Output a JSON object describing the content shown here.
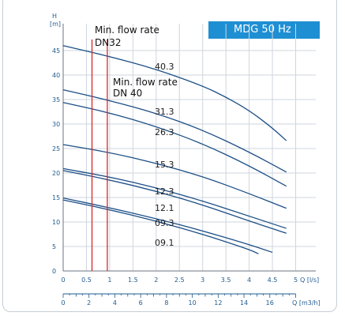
{
  "chart_data": {
    "type": "line",
    "badge": "MDG 50 Hz",
    "y_axis": {
      "unit_top": "H",
      "unit_bottom": "[m]",
      "ylim": [
        0,
        47
      ],
      "ticks": [
        0,
        5,
        10,
        15,
        20,
        25,
        30,
        35,
        40,
        45
      ]
    },
    "x_axis": {
      "label": "Q [l/s]",
      "xlim": [
        0,
        5
      ],
      "ticks": [
        0,
        0.5,
        1,
        1.5,
        2,
        2.5,
        3,
        3.5,
        4,
        4.5,
        5
      ],
      "tick_labels": [
        "0",
        "0.5",
        "1",
        "1.5",
        "2",
        "2.5",
        "3",
        "3.5",
        "4",
        "4.5",
        "5"
      ]
    },
    "x2_axis": {
      "label": "Q [m3/h]",
      "xlim": [
        0,
        18
      ],
      "ticks": [
        0,
        2,
        4,
        6,
        8,
        10,
        12,
        14,
        16
      ],
      "tick_labels": [
        "0",
        "2",
        "4",
        "6",
        "8",
        "10",
        "12",
        "14",
        "16"
      ]
    },
    "grid": true,
    "markers": [
      {
        "lines": [
          "Min. flow rate",
          "DN32"
        ],
        "x": 0.62,
        "color": "#d9262c"
      },
      {
        "lines": [
          "Min. flow rate",
          "DN 40"
        ],
        "x": 0.95,
        "color": "#d9262c"
      }
    ],
    "series": [
      {
        "name": "40.3",
        "x": [
          0,
          1,
          2,
          3,
          3.5,
          4,
          4.5,
          4.8
        ],
        "y": [
          46,
          43.8,
          41.2,
          37.8,
          35.5,
          32.8,
          29.2,
          26.6
        ]
      },
      {
        "name": "31.3",
        "x": [
          0,
          1,
          2,
          3,
          4,
          4.8
        ],
        "y": [
          37,
          34.8,
          32.2,
          28.8,
          24.3,
          20.2
        ]
      },
      {
        "name": "26.3",
        "x": [
          0,
          1,
          2,
          3,
          4,
          4.8
        ],
        "y": [
          34.4,
          32.3,
          29.5,
          26,
          21.5,
          17.3
        ]
      },
      {
        "name": "15.3",
        "x": [
          0,
          1,
          2,
          3,
          4,
          4.8
        ],
        "y": [
          25.8,
          24.2,
          22,
          19.3,
          15.8,
          12.8
        ]
      },
      {
        "name": "12.3",
        "x": [
          0,
          1,
          2,
          3,
          4,
          4.8
        ],
        "y": [
          20.9,
          19.2,
          17,
          14.3,
          11.2,
          8.7
        ]
      },
      {
        "name": "12.1",
        "x": [
          0,
          1,
          2,
          3,
          4,
          4.8
        ],
        "y": [
          20.5,
          18.6,
          16.3,
          13.5,
          10.2,
          7.7
        ]
      },
      {
        "name": "09.3",
        "x": [
          0,
          1,
          2,
          3,
          4,
          4.5
        ],
        "y": [
          14.9,
          12.9,
          10.7,
          8.2,
          5.4,
          3.8
        ]
      },
      {
        "name": "09.1",
        "x": [
          0,
          1,
          2,
          3,
          4,
          4.2
        ],
        "y": [
          14.5,
          12.5,
          10.2,
          7.5,
          4.4,
          3.5
        ]
      }
    ]
  }
}
